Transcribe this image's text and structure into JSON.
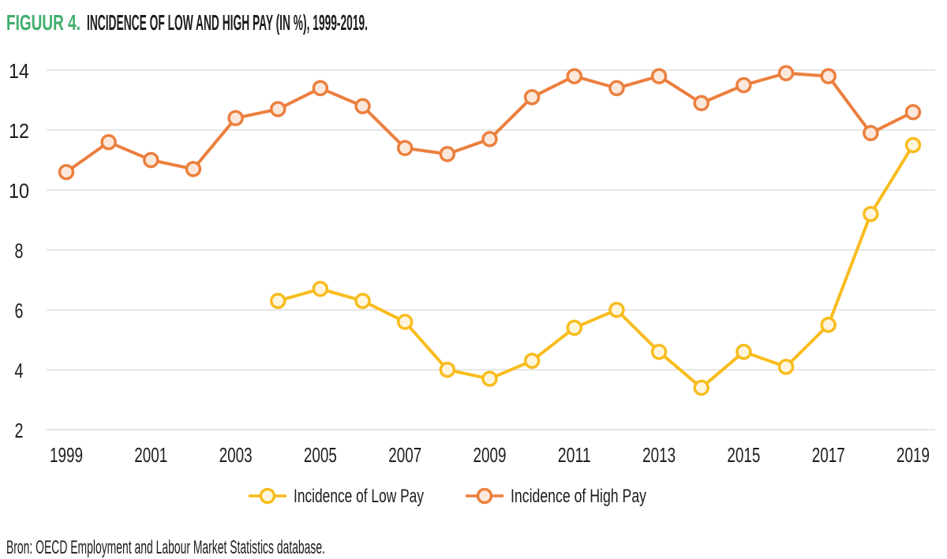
{
  "header": {
    "figure_label": "FIGUUR 4.",
    "title": "INCIDENCE OF LOW AND HIGH PAY (IN %), 1999-2019."
  },
  "footer": {
    "source": "Bron: OECD Employment and Labour Market Statistics database."
  },
  "colors": {
    "figure_label_green": "#3FAE6C",
    "text_dark": "#1D1D1B",
    "gridline": "#DEDEDE",
    "low_pay_line": "#F8BC1D",
    "low_pay_marker_fill": "#FEF5DC",
    "high_pay_line": "#EC7F3E",
    "high_pay_marker_fill": "#FBE8DA"
  },
  "chart_data": {
    "type": "line",
    "title": "FIGUUR 4. INCIDENCE OF LOW AND HIGH PAY (IN %), 1999-2019.",
    "xlabel": "",
    "ylabel": "",
    "ylim": [
      2,
      14
    ],
    "yticks": [
      2,
      4,
      6,
      8,
      10,
      12,
      14
    ],
    "x_tick_labels": [
      "1999",
      "2001",
      "2003",
      "2005",
      "2007",
      "2009",
      "2011",
      "2013",
      "2015",
      "2017",
      "2019"
    ],
    "grid": "horizontal-only",
    "legend_position": "bottom-center",
    "series": [
      {
        "name": "Incidence of Low Pay",
        "color": "#F8BC1D",
        "marker_fill": "#FEF5DC",
        "x": [
          2004,
          2005,
          2006,
          2007,
          2008,
          2009,
          2010,
          2011,
          2012,
          2013,
          2014,
          2015,
          2016,
          2017,
          2018,
          2019
        ],
        "values": [
          6.3,
          6.7,
          6.3,
          5.6,
          4.0,
          3.7,
          4.3,
          5.4,
          6.0,
          4.6,
          3.4,
          4.6,
          4.1,
          5.5,
          9.2,
          11.5
        ]
      },
      {
        "name": "Incidence of High Pay",
        "color": "#EC7F3E",
        "marker_fill": "#FBE8DA",
        "x": [
          1999,
          2000,
          2001,
          2002,
          2003,
          2004,
          2005,
          2006,
          2007,
          2008,
          2009,
          2010,
          2011,
          2012,
          2013,
          2014,
          2015,
          2016,
          2017,
          2018,
          2019
        ],
        "values": [
          10.6,
          11.6,
          11.0,
          10.7,
          12.4,
          12.7,
          13.4,
          12.8,
          11.4,
          11.2,
          11.7,
          13.1,
          13.8,
          13.4,
          13.8,
          12.9,
          13.5,
          13.9,
          13.8,
          11.9,
          12.6
        ]
      }
    ]
  }
}
